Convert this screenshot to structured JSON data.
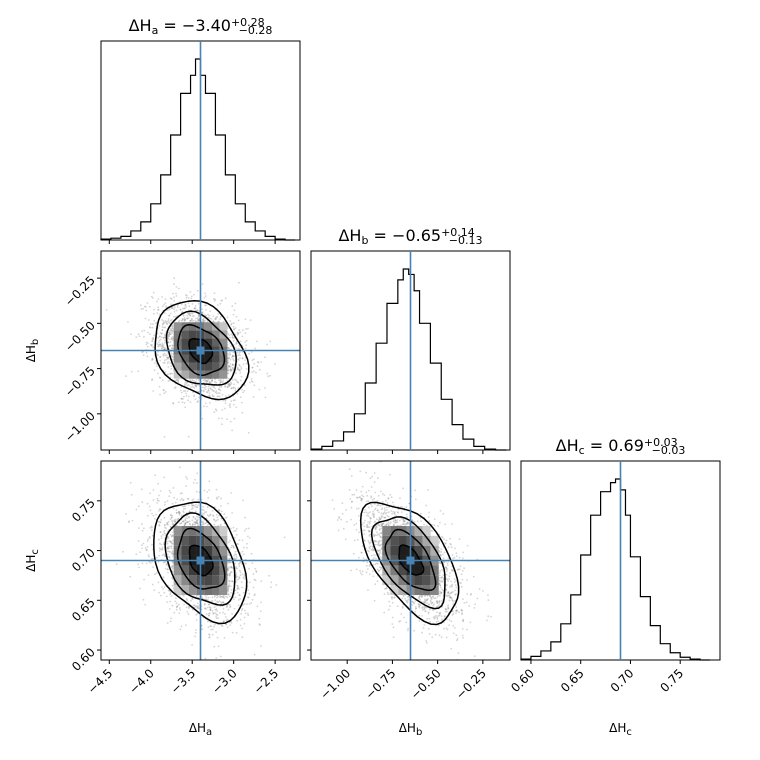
{
  "chart_data": {
    "type": "corner",
    "truth_color": "#4682b4",
    "parameters": [
      {
        "key": "a",
        "label_base": "ΔH",
        "label_sub": "a",
        "title_value": "−3.40",
        "title_plus": "+0.28",
        "title_minus": "−0.28",
        "truth": -3.4,
        "xlim": [
          -4.6,
          -2.2
        ],
        "ticks": [
          -4.5,
          -4.0,
          -3.5,
          -3.0,
          -2.5
        ],
        "tick_labels": [
          "−4.5",
          "−4.0",
          "−3.5",
          "−3.0",
          "−2.5"
        ],
        "hist_bins": [
          -4.6,
          -4.48,
          -4.36,
          -4.24,
          -4.12,
          -4.0,
          -3.88,
          -3.76,
          -3.64,
          -3.52,
          -3.46,
          -3.4,
          -3.34,
          -3.22,
          -3.1,
          -2.98,
          -2.86,
          -2.74,
          -2.62,
          -2.5,
          -2.38,
          -2.26
        ],
        "hist_values": [
          0.5,
          1,
          2,
          5,
          10,
          20,
          36,
          58,
          81,
          91,
          100,
          91,
          81,
          58,
          36,
          20,
          10,
          5,
          2,
          0.5,
          0
        ]
      },
      {
        "key": "b",
        "label_base": "ΔH",
        "label_sub": "b",
        "title_value": "−0.65",
        "title_plus": "+0.14",
        "title_minus": "−0.13",
        "truth": -0.65,
        "xlim": [
          -1.2,
          -0.1
        ],
        "ticks": [
          -1.0,
          -0.75,
          -0.5,
          -0.25
        ],
        "tick_labels": [
          "−1.00",
          "−0.75",
          "−0.50",
          "−0.25"
        ],
        "hist_bins": [
          -1.2,
          -1.14,
          -1.08,
          -1.02,
          -0.96,
          -0.9,
          -0.84,
          -0.78,
          -0.72,
          -0.69,
          -0.66,
          -0.63,
          -0.6,
          -0.54,
          -0.48,
          -0.42,
          -0.36,
          -0.3,
          -0.24,
          -0.18,
          -0.12
        ],
        "hist_values": [
          0.5,
          2,
          5,
          10,
          20,
          37,
          59,
          81,
          94,
          100,
          97,
          88,
          70,
          48,
          28,
          14,
          6,
          2,
          0.5,
          0
        ]
      },
      {
        "key": "c",
        "label_base": "ΔH",
        "label_sub": "c",
        "title_value": "0.69",
        "title_plus": "+0.03",
        "title_minus": "−0.03",
        "truth": 0.69,
        "xlim": [
          0.59,
          0.79
        ],
        "ticks": [
          0.6,
          0.65,
          0.7,
          0.75
        ],
        "tick_labels": [
          "0.60",
          "0.65",
          "0.70",
          "0.75"
        ],
        "hist_bins": [
          0.59,
          0.6,
          0.61,
          0.62,
          0.63,
          0.64,
          0.65,
          0.66,
          0.67,
          0.68,
          0.685,
          0.69,
          0.695,
          0.7,
          0.71,
          0.72,
          0.73,
          0.74,
          0.75,
          0.76,
          0.77,
          0.78
        ],
        "hist_values": [
          0.5,
          2,
          5,
          10,
          20,
          36,
          58,
          80,
          93,
          98,
          100,
          94,
          80,
          57,
          35,
          19,
          9,
          4,
          1.5,
          0.5,
          0
        ]
      }
    ],
    "pairs": [
      {
        "x": "a",
        "y": "b",
        "rho": -0.3,
        "cx": -3.4,
        "cy": -0.65,
        "sx": 0.28,
        "sy": 0.135
      },
      {
        "x": "a",
        "y": "c",
        "rho": -0.35,
        "cx": -3.4,
        "cy": 0.69,
        "sx": 0.28,
        "sy": 0.03
      },
      {
        "x": "b",
        "y": "c",
        "rho": -0.55,
        "cx": -0.65,
        "cy": 0.69,
        "sx": 0.135,
        "sy": 0.03
      }
    ],
    "contour_levels_sigma": [
      0.5,
      1.0,
      1.5,
      2.0
    ]
  }
}
